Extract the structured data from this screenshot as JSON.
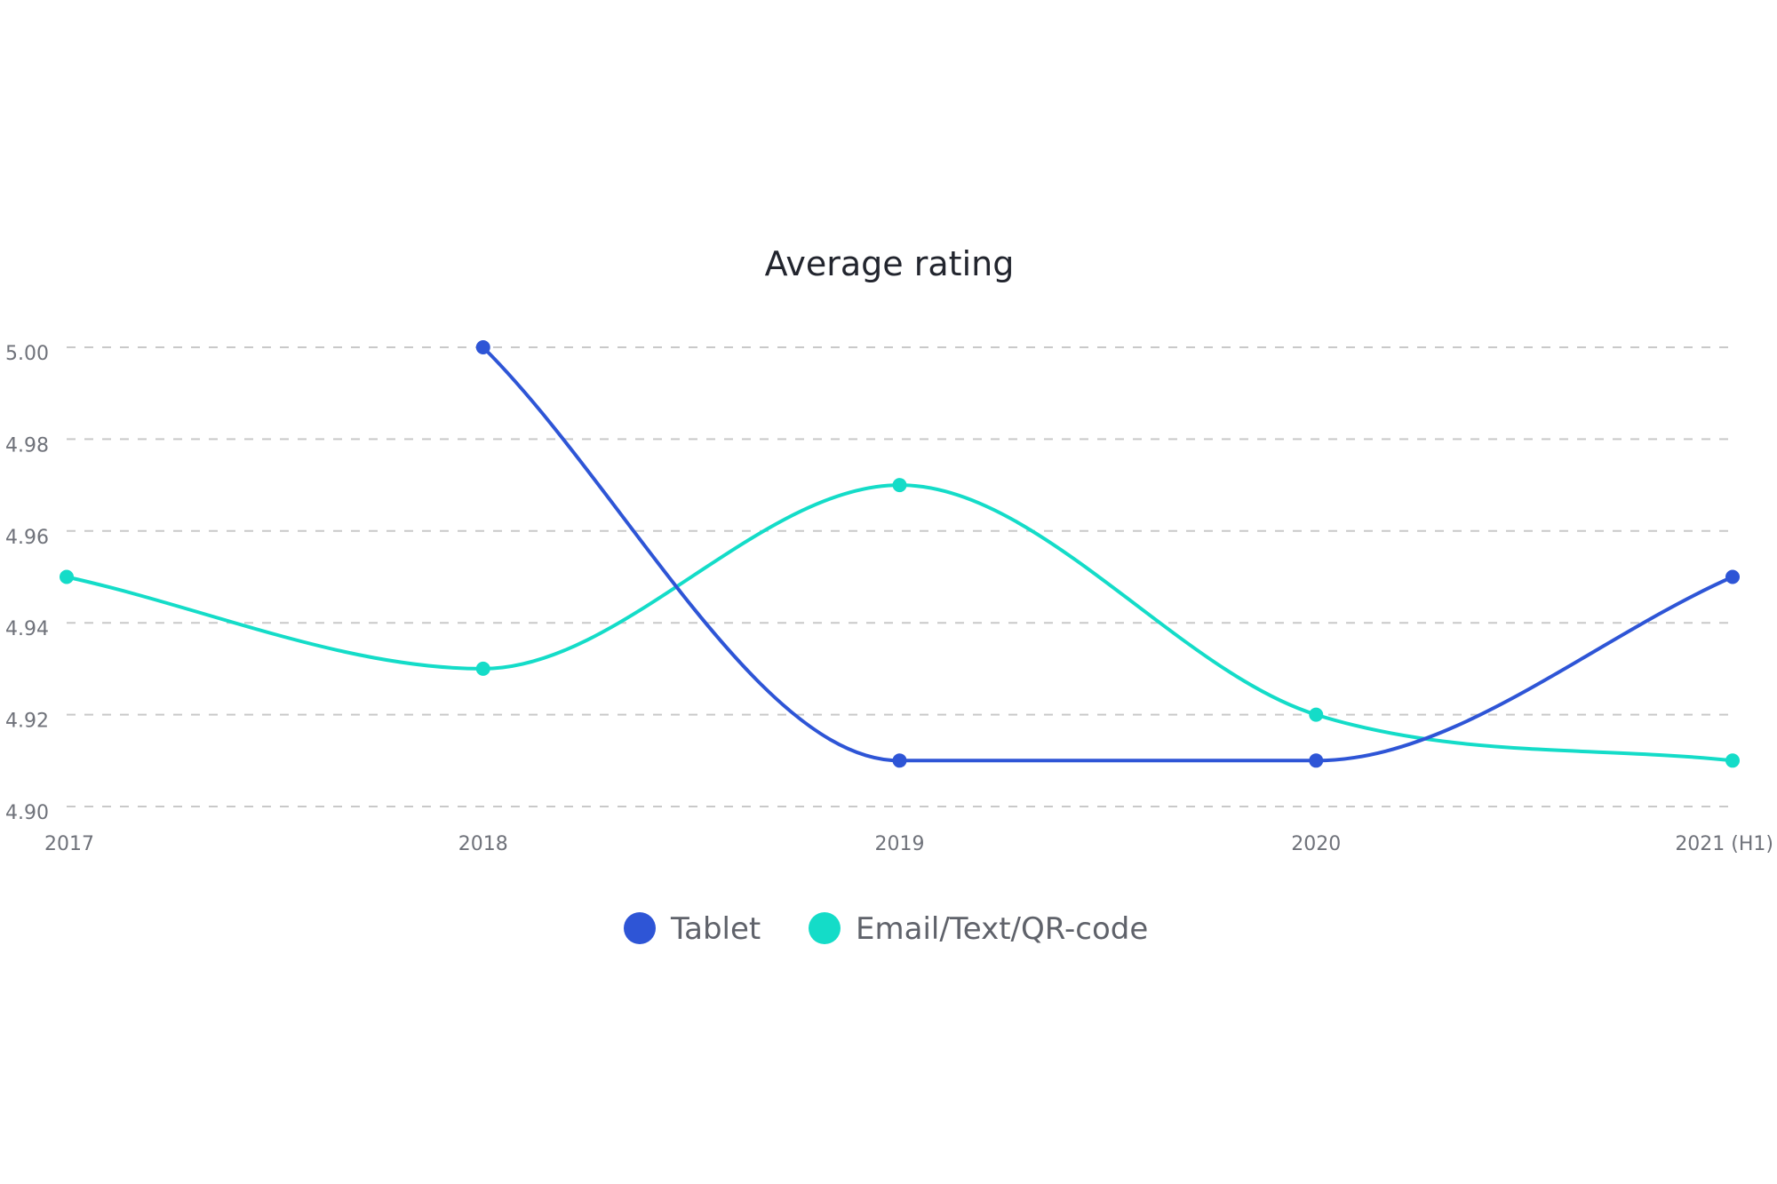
{
  "chart_data": {
    "type": "line",
    "title": "Average rating",
    "xlabel": "",
    "ylabel": "",
    "categories": [
      "2017",
      "2018",
      "2019",
      "2020",
      "2021 (H1)"
    ],
    "ylim": [
      4.9,
      5.0
    ],
    "yticks": [
      "4.90",
      "4.92",
      "4.94",
      "4.96",
      "4.98",
      "5.00"
    ],
    "grid": true,
    "legend_position": "bottom-center",
    "series": [
      {
        "name": "Tablet",
        "color": "#2e55d6",
        "values": [
          null,
          5.0,
          4.91,
          4.91,
          4.95
        ]
      },
      {
        "name": "Email/Text/QR-code",
        "color": "#14dcc8",
        "values": [
          4.95,
          4.93,
          4.97,
          4.92,
          4.91
        ]
      }
    ]
  }
}
